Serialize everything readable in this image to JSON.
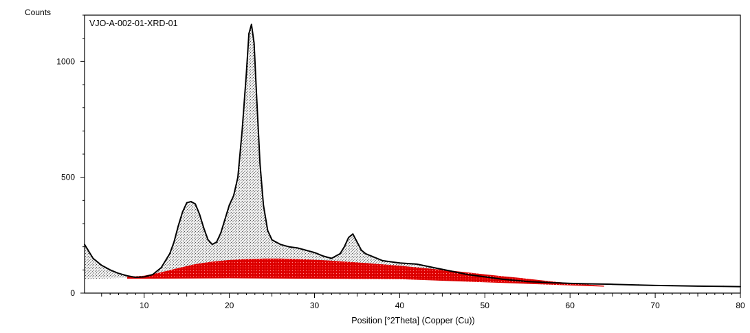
{
  "chart_data": {
    "type": "line",
    "title": "VJO-A-002-01-XRD-01",
    "xlabel": "Position [°2Theta] (Copper (Cu))",
    "ylabel": "Counts",
    "xlim": [
      3,
      80
    ],
    "ylim": [
      0,
      1200
    ],
    "x_ticks": [
      10,
      20,
      30,
      40,
      50,
      60,
      70,
      80
    ],
    "y_ticks": [
      0,
      500,
      1000
    ],
    "grid": false,
    "legend": "none",
    "series": [
      {
        "role": "measured-pattern",
        "color": "#000000",
        "fill": "#bdbdbd",
        "x": [
          3,
          4,
          5,
          6,
          7,
          8,
          9,
          10,
          11,
          12,
          13,
          13.5,
          14,
          14.5,
          15,
          15.5,
          16,
          16.5,
          17,
          17.5,
          18,
          18.5,
          19,
          19.5,
          20,
          20.5,
          21,
          21.5,
          22,
          22.3,
          22.6,
          22.9,
          23.2,
          23.6,
          24,
          24.5,
          25,
          26,
          27,
          28,
          29,
          30,
          31,
          32,
          33,
          33.5,
          34,
          34.5,
          35,
          35.5,
          36,
          37,
          38,
          40,
          42,
          44,
          46,
          48,
          50,
          52,
          55,
          58,
          60,
          62,
          65,
          68,
          70,
          72,
          75,
          78,
          80
        ],
        "y": [
          210,
          150,
          120,
          100,
          85,
          75,
          68,
          70,
          80,
          110,
          170,
          220,
          290,
          350,
          390,
          395,
          385,
          340,
          280,
          230,
          210,
          220,
          260,
          320,
          380,
          420,
          500,
          700,
          950,
          1120,
          1160,
          1080,
          850,
          560,
          380,
          270,
          230,
          210,
          200,
          195,
          185,
          175,
          160,
          150,
          170,
          200,
          240,
          255,
          220,
          185,
          170,
          155,
          140,
          130,
          125,
          110,
          95,
          80,
          70,
          60,
          50,
          45,
          42,
          40,
          38,
          35,
          33,
          32,
          30,
          29,
          28
        ]
      },
      {
        "role": "amorphous-background",
        "color": "#e00000",
        "fill": "#e00000",
        "x": [
          8,
          10,
          12,
          14,
          16,
          18,
          20,
          22,
          24,
          26,
          28,
          30,
          32,
          34,
          36,
          38,
          40,
          42,
          44,
          46,
          48,
          50,
          52,
          54,
          56,
          58,
          60,
          62,
          64
        ],
        "y": [
          70,
          75,
          90,
          108,
          125,
          136,
          143,
          147,
          149,
          149,
          147,
          144,
          140,
          135,
          130,
          124,
          118,
          111,
          104,
          97,
          89,
          81,
          73,
          66,
          58,
          50,
          43,
          37,
          32
        ]
      }
    ]
  }
}
